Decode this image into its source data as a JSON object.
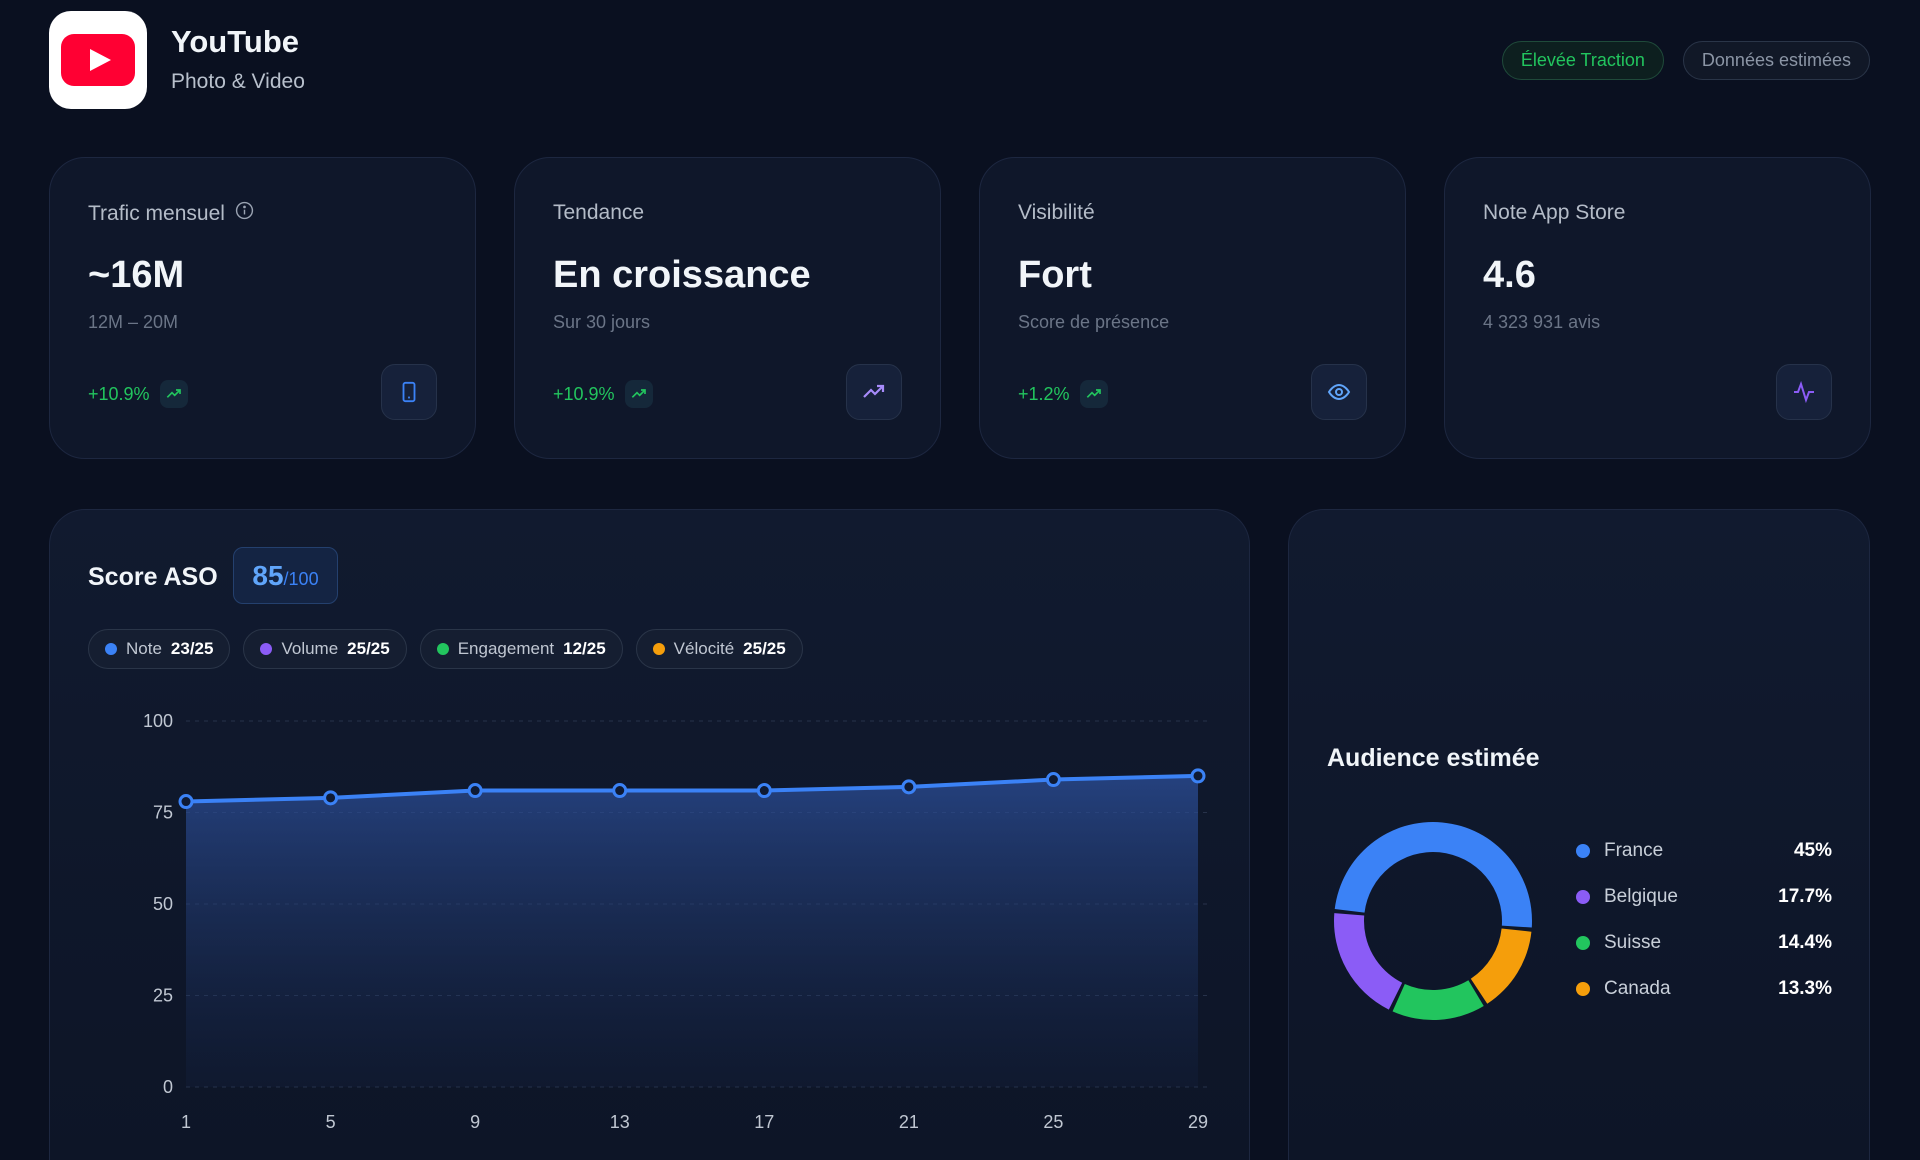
{
  "header": {
    "app_name": "YouTube",
    "category": "Photo & Video",
    "badges": [
      "Élevée Traction",
      "Données estimées"
    ]
  },
  "stats": [
    {
      "label": "Trafic mensuel",
      "value": "~16M",
      "sub": "12M – 20M",
      "change": "+10.9%"
    },
    {
      "label": "Tendance",
      "value": "En croissance",
      "sub": "Sur 30 jours",
      "change": "+10.9%"
    },
    {
      "label": "Visibilité",
      "value": "Fort",
      "sub": "Score de présence",
      "change": "+1.2%"
    },
    {
      "label": "Note App Store",
      "value": "4.6",
      "sub": "4 323 931 avis"
    }
  ],
  "chart_data": [
    {
      "type": "line",
      "title": "Score ASO",
      "score": "85",
      "score_max": "/100",
      "components": [
        {
          "name": "Note",
          "score": "23/25",
          "color": "#3b82f6"
        },
        {
          "name": "Volume",
          "score": "25/25",
          "color": "#8b5cf6"
        },
        {
          "name": "Engagement",
          "score": "12/25",
          "color": "#22c55e"
        },
        {
          "name": "Vélocité",
          "score": "25/25",
          "color": "#f59e0b"
        }
      ],
      "x": [
        1,
        5,
        9,
        13,
        17,
        21,
        25,
        29
      ],
      "values": [
        78,
        79,
        81,
        81,
        81,
        82,
        84,
        85
      ],
      "color": "#3b82f6",
      "xlim": [
        1,
        29
      ],
      "xticks": [
        1,
        5,
        9,
        13,
        17,
        21,
        25,
        29
      ],
      "ylim": [
        0,
        100
      ],
      "yticks": [
        0,
        25,
        50,
        75,
        100
      ],
      "grid": true
    },
    {
      "type": "donut",
      "title": "Audience estimée",
      "categories": [
        "France",
        "Belgique",
        "Suisse",
        "Canada"
      ],
      "values": [
        45,
        17.7,
        14.4,
        13.3
      ],
      "value_labels": [
        "45%",
        "17.7%",
        "14.4%",
        "13.3%"
      ],
      "colors": [
        "#3b82f6",
        "#8b5cf6",
        "#22c55e",
        "#f59e0b"
      ]
    }
  ]
}
